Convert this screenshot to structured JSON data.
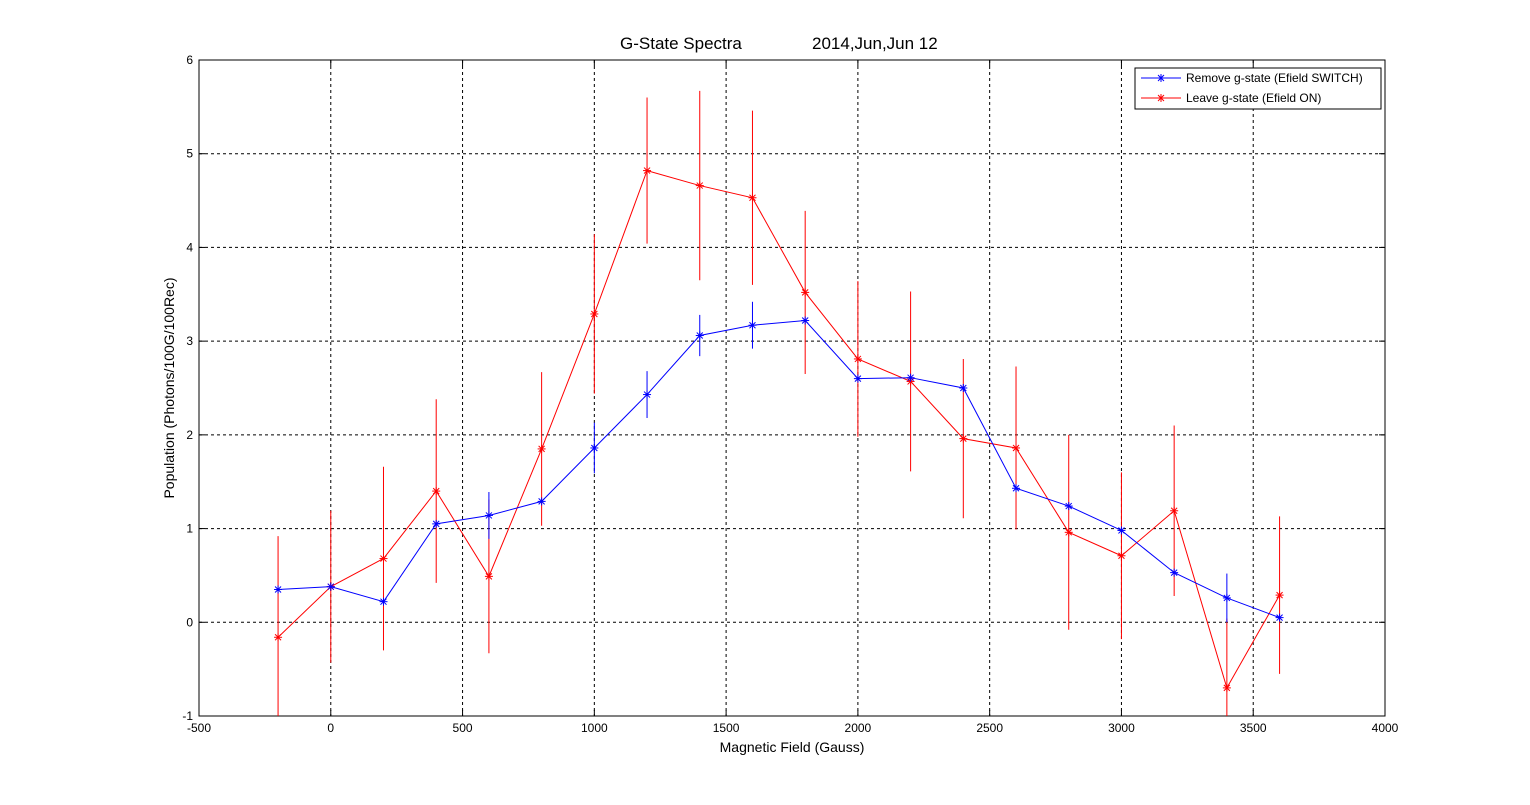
{
  "chart_data": {
    "type": "line",
    "title": "G-State Spectra",
    "subtitle": "2014,Jun,Jun 12",
    "xlabel": "Magnetic Field (Gauss)",
    "ylabel": "Population (Photons/100G/100Rec)",
    "xlim": [
      -500,
      4000
    ],
    "ylim": [
      -1,
      6
    ],
    "xticks": [
      -500,
      0,
      500,
      1000,
      1500,
      2000,
      2500,
      3000,
      3500,
      4000
    ],
    "yticks": [
      -1,
      0,
      1,
      2,
      3,
      4,
      5,
      6
    ],
    "grid": true,
    "legend_position": "top-right",
    "x": [
      -200,
      0,
      200,
      400,
      600,
      800,
      1000,
      1200,
      1400,
      1600,
      1800,
      2000,
      2200,
      2400,
      2600,
      2800,
      3000,
      3200,
      3400,
      3600
    ],
    "series": [
      {
        "name": "Remove g-state (Efield SWITCH)",
        "color": "#0000ff",
        "marker": "asterisk",
        "values": [
          0.35,
          0.38,
          0.22,
          1.05,
          1.14,
          1.29,
          1.86,
          2.43,
          3.06,
          3.17,
          3.22,
          2.6,
          2.61,
          2.5,
          1.43,
          1.24,
          0.98,
          0.53,
          0.26,
          0.05
        ],
        "errors": [
          0,
          0,
          0,
          0,
          0.25,
          0,
          0.27,
          0.25,
          0.22,
          0.25,
          0,
          0,
          0,
          0,
          0,
          0,
          0,
          0,
          0.26,
          0
        ]
      },
      {
        "name": "Leave g-state (Efield ON)",
        "color": "#ff0000",
        "marker": "asterisk",
        "values": [
          -0.16,
          0.38,
          0.68,
          1.4,
          0.49,
          1.85,
          3.29,
          4.82,
          4.66,
          4.53,
          3.52,
          2.81,
          2.57,
          1.96,
          1.86,
          0.96,
          0.71,
          1.19,
          -0.7,
          0.29
        ],
        "errors": [
          1.08,
          0.81,
          0.98,
          0.98,
          0.82,
          0.82,
          0.85,
          0.78,
          1.01,
          0.93,
          0.87,
          0.83,
          0.96,
          0.85,
          0.87,
          1.04,
          0.89,
          0.91,
          0.74,
          0.84
        ]
      }
    ]
  }
}
